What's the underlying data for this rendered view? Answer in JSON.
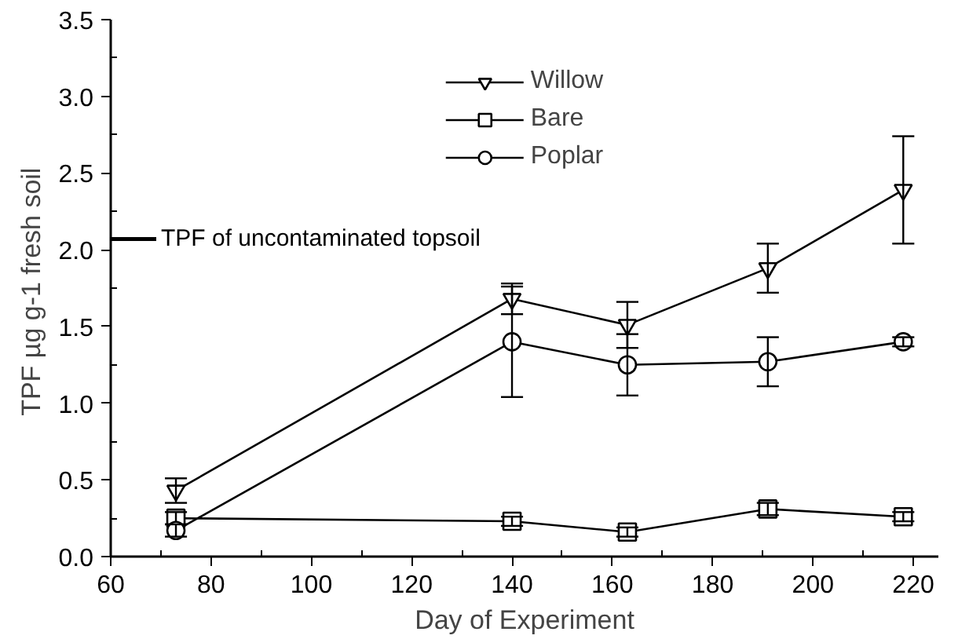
{
  "chart_data": {
    "type": "line",
    "xlabel": "Day of Experiment",
    "ylabel": "TPF  µg g-1 fresh soil",
    "xlim": [
      60,
      225
    ],
    "ylim": [
      0,
      3.5
    ],
    "xticks": [
      60,
      80,
      100,
      120,
      140,
      160,
      180,
      200,
      220
    ],
    "yticks": [
      {
        "value": 0,
        "label": "0.0"
      },
      {
        "value": 0.5,
        "label": "0.5"
      },
      {
        "value": 1,
        "label": "1.0"
      },
      {
        "value": 1.5,
        "label": "1.5"
      },
      {
        "value": 2,
        "label": "2.0"
      },
      {
        "value": 2.5,
        "label": "2.5"
      },
      {
        "value": 3,
        "label": "3.0"
      },
      {
        "value": 3.5,
        "label": "3.5"
      }
    ],
    "x": [
      73,
      140,
      163,
      191,
      218
    ],
    "series": [
      {
        "name": "Willow",
        "color": "#000000",
        "marker": "triangle",
        "values": [
          0.43,
          1.68,
          1.51,
          1.88,
          2.39
        ],
        "errors": [
          0.08,
          0.1,
          0.15,
          0.16,
          0.35
        ]
      },
      {
        "name": "Bare",
        "color": "#000000",
        "marker": "square",
        "values": [
          0.25,
          0.23,
          0.16,
          0.31,
          0.26
        ],
        "errors": [
          0.04,
          0.03,
          0.03,
          0.04,
          0.03
        ]
      },
      {
        "name": "Poplar",
        "color": "#000000",
        "marker": "circle",
        "values": [
          0.17,
          1.4,
          1.25,
          1.27,
          1.4
        ],
        "errors": [
          0.04,
          0.36,
          0.2,
          0.16,
          0.03
        ]
      }
    ],
    "ref_lines": [
      {
        "axis": "y",
        "value": 2.07,
        "label": "TPF of uncontaminated topsoil"
      }
    ],
    "legend": "top",
    "grid": false
  }
}
